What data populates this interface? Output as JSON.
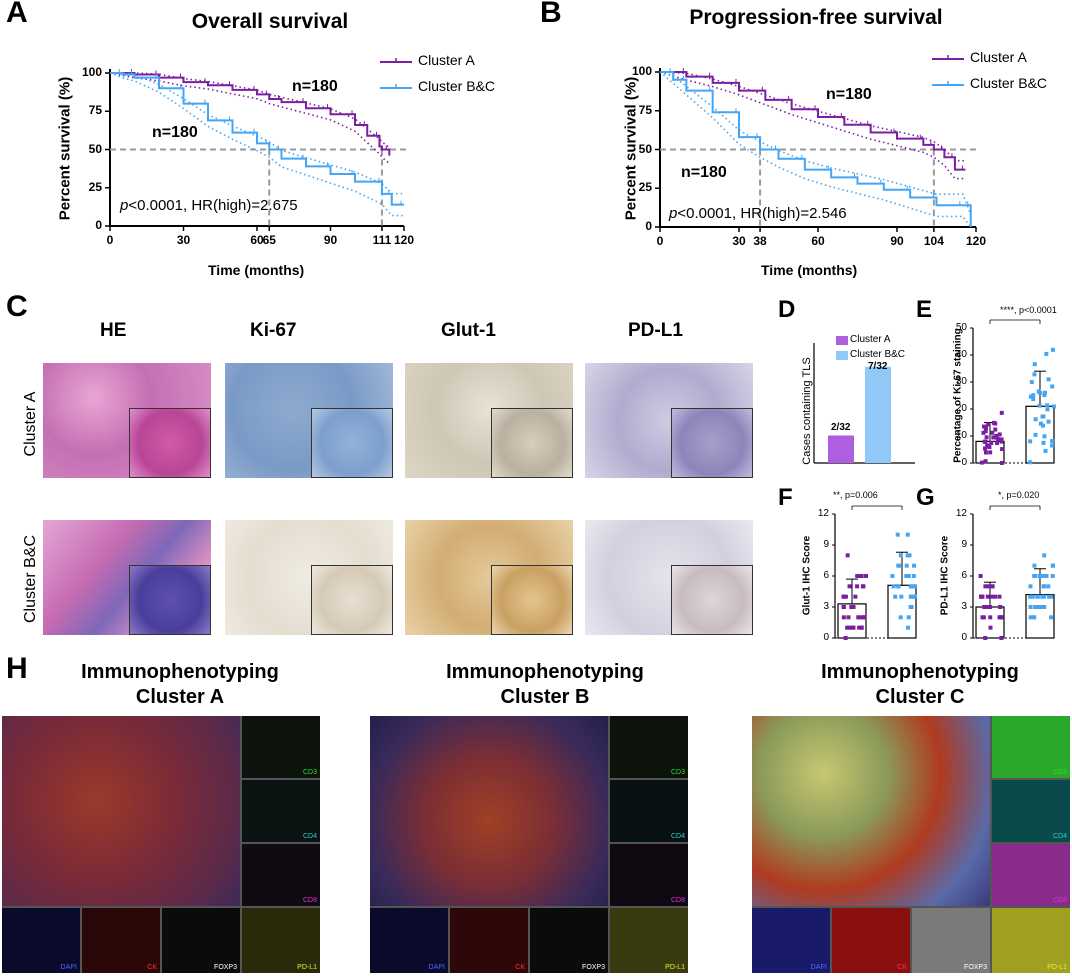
{
  "panel_labels": {
    "a": "A",
    "b": "B",
    "c": "C",
    "d": "D",
    "e": "E",
    "f": "F",
    "g": "G",
    "h": "H"
  },
  "colors": {
    "cluster_a": "#7b1fa2",
    "cluster_bc": "#42a5f5",
    "cluster_a_bar": "#b05ee0",
    "cluster_bc_bar": "#90c8f8",
    "ref": "#999999"
  },
  "chart_data": [
    {
      "id": "overall_survival",
      "type": "line",
      "title": "Overall survival",
      "xlabel": "Time (months)",
      "ylabel": "Percent survival (%)",
      "xlim": [
        0,
        120
      ],
      "ylim": [
        0,
        100
      ],
      "xticks": [
        "0",
        "30",
        "60",
        "65",
        "90",
        "111",
        "120"
      ],
      "yticks": [
        "0",
        "25",
        "50",
        "75",
        "100"
      ],
      "series": [
        {
          "name": "Cluster A",
          "n_label": "n=180",
          "x": [
            0,
            10,
            20,
            30,
            40,
            50,
            60,
            65,
            70,
            80,
            90,
            100,
            105,
            110,
            111,
            114
          ],
          "y": [
            100,
            99,
            97,
            94,
            92,
            89,
            86,
            83,
            81,
            77,
            73,
            66,
            59,
            52,
            50,
            46
          ]
        },
        {
          "name": "Cluster B&C",
          "n_label": "n=180",
          "x": [
            0,
            5,
            10,
            20,
            30,
            40,
            50,
            60,
            65,
            70,
            80,
            90,
            100,
            111,
            115,
            120
          ],
          "y": [
            100,
            99,
            97,
            90,
            80,
            69,
            61,
            54,
            50,
            44,
            39,
            34,
            29,
            21,
            14,
            14
          ]
        }
      ],
      "median_markers": [
        65,
        111
      ],
      "stat": {
        "prefix": "p",
        "text": "<0.0001, HR(high)=2.675"
      }
    },
    {
      "id": "progression_free_survival",
      "type": "line",
      "title": "Progression-free survival",
      "xlabel": "Time (months)",
      "ylabel": "Percent survival (%)",
      "xlim": [
        0,
        120
      ],
      "ylim": [
        0,
        100
      ],
      "xticks": [
        "0",
        "30",
        "38",
        "60",
        "90",
        "104",
        "120"
      ],
      "yticks": [
        "0",
        "25",
        "50",
        "75",
        "100"
      ],
      "series": [
        {
          "name": "Cluster A",
          "n_label": "n=180",
          "x": [
            0,
            10,
            20,
            30,
            40,
            50,
            60,
            70,
            80,
            90,
            100,
            104,
            108,
            112,
            116
          ],
          "y": [
            100,
            97,
            93,
            88,
            82,
            76,
            71,
            66,
            61,
            57,
            53,
            50,
            45,
            37,
            37
          ]
        },
        {
          "name": "Cluster B&C",
          "n_label": "n=180",
          "x": [
            0,
            5,
            10,
            20,
            30,
            38,
            45,
            55,
            65,
            75,
            85,
            95,
            105,
            115,
            118
          ],
          "y": [
            100,
            95,
            88,
            74,
            58,
            50,
            44,
            37,
            32,
            28,
            24,
            19,
            14,
            14,
            0
          ]
        }
      ],
      "median_markers": [
        38,
        104
      ],
      "stat": {
        "prefix": "p",
        "text": "<0.0001, HR(high)=2.546"
      }
    },
    {
      "id": "tls_cases",
      "type": "bar",
      "ylabel": "Cases containing TLS",
      "categories": [
        "Cluster A",
        "Cluster B&C"
      ],
      "values": [
        2,
        7
      ],
      "data_labels": [
        "2/32",
        "7/32"
      ],
      "ylim": [
        0,
        8
      ]
    },
    {
      "id": "ki67",
      "type": "scatter",
      "ylabel": "Percentage of Ki-67 staining",
      "yticks": [
        "0",
        "10",
        "20",
        "30",
        "40",
        "50"
      ],
      "ylim": [
        0,
        50
      ],
      "groups": [
        {
          "name": "Cluster A",
          "mean": 8,
          "sd": 7
        },
        {
          "name": "Cluster B&C",
          "mean": 21,
          "sd": 13
        }
      ],
      "sig_text": "****, p<0.0001"
    },
    {
      "id": "glut1",
      "type": "scatter",
      "ylabel": "Glut-1 IHC Score",
      "yticks": [
        "0",
        "3",
        "6",
        "9",
        "12"
      ],
      "ylim": [
        0,
        12
      ],
      "groups": [
        {
          "name": "Cluster A",
          "mean": 3.3,
          "sd": 2.4
        },
        {
          "name": "Cluster B&C",
          "mean": 5.1,
          "sd": 3.2
        }
      ],
      "sig_text": "**, p=0.006"
    },
    {
      "id": "pdl1",
      "type": "scatter",
      "ylabel": "PD-L1 IHC Score",
      "yticks": [
        "0",
        "3",
        "6",
        "9",
        "12"
      ],
      "ylim": [
        0,
        12
      ],
      "groups": [
        {
          "name": "Cluster A",
          "mean": 3.0,
          "sd": 2.4
        },
        {
          "name": "Cluster B&C",
          "mean": 4.2,
          "sd": 2.5
        }
      ],
      "sig_text": "*, p=0.020"
    }
  ],
  "legend": {
    "cluster_a": "Cluster A",
    "cluster_bc": "Cluster B&C"
  },
  "panel_c": {
    "columns": [
      "HE",
      "Ki-67",
      "Glut-1",
      "PD-L1"
    ],
    "rows": [
      "Cluster A",
      "Cluster B&C"
    ]
  },
  "panel_h": {
    "panels": [
      {
        "line1": "Immunophenotyping",
        "line2": "Cluster A"
      },
      {
        "line1": "Immunophenotyping",
        "line2": "Cluster B"
      },
      {
        "line1": "Immunophenotyping",
        "line2": "Cluster C"
      }
    ],
    "channels": {
      "cd3": "CD3",
      "cd4": "CD4",
      "cd8": "CD8",
      "dapi": "DAPI",
      "ck": "CK",
      "foxp3": "FOXP3",
      "pdl1": "PD-L1"
    }
  }
}
